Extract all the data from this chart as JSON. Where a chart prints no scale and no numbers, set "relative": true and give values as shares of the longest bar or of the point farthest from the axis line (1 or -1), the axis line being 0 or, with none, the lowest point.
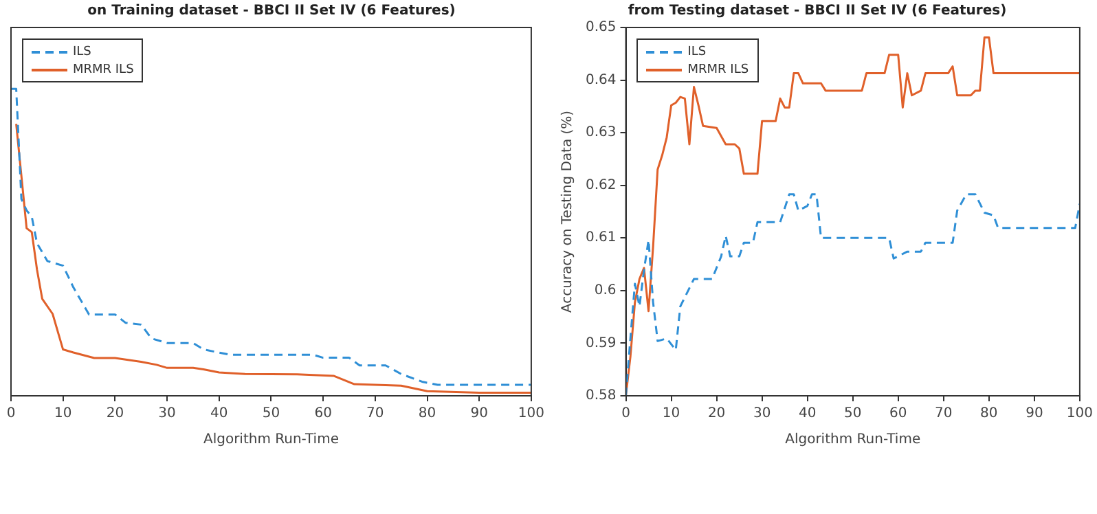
{
  "chart_data": [
    {
      "type": "line",
      "title": "on Training dataset - BBCI II Set IV (6 Features)",
      "xlabel": "Algorithm Run-Time",
      "xlim": [
        0,
        100
      ],
      "xticks": [
        0,
        10,
        20,
        30,
        40,
        50,
        60,
        70,
        80,
        90,
        100
      ],
      "relative": true,
      "grid": false,
      "legend": "top left",
      "marker": "none",
      "series": [
        {
          "name": "ILS",
          "color": "#2f8fd6",
          "line_style": "dashed",
          "x": [
            0,
            1,
            2,
            3,
            4,
            5,
            7,
            10,
            12,
            15,
            20,
            22,
            25,
            27,
            30,
            35,
            37,
            42,
            58,
            60,
            65,
            67,
            72,
            75,
            79,
            82,
            100
          ],
          "values": [
            1,
            1,
            0.641,
            0.604,
            0.583,
            0.497,
            0.439,
            0.424,
            0.353,
            0.265,
            0.265,
            0.238,
            0.232,
            0.187,
            0.172,
            0.172,
            0.151,
            0.134,
            0.134,
            0.124,
            0.124,
            0.099,
            0.099,
            0.071,
            0.046,
            0.036,
            0.036
          ]
        },
        {
          "name": "MRMR ILS",
          "color": "#e0602a",
          "line_style": "solid",
          "x": [
            1,
            3,
            4,
            5,
            6,
            8,
            10,
            12,
            16,
            20,
            25,
            28,
            30,
            35,
            37,
            40,
            45,
            55,
            62,
            66,
            75,
            80,
            90,
            100
          ],
          "values": [
            0.886,
            0.546,
            0.533,
            0.411,
            0.316,
            0.267,
            0.151,
            0.141,
            0.123,
            0.123,
            0.111,
            0.101,
            0.091,
            0.091,
            0.086,
            0.076,
            0.071,
            0.07,
            0.065,
            0.038,
            0.033,
            0.015,
            0.01,
            0.01
          ]
        }
      ]
    },
    {
      "type": "line",
      "title": "from Testing dataset - BBCI II Set IV (6 Features)",
      "xlabel": "Algorithm Run-Time",
      "ylabel": "Accuracy on Testing Data (%)",
      "xlim": [
        0,
        100
      ],
      "xticks": [
        0,
        10,
        20,
        30,
        40,
        50,
        60,
        70,
        80,
        90,
        100
      ],
      "ylim": [
        0.58,
        0.65
      ],
      "yticks": [
        0.58,
        0.59,
        0.6,
        0.61,
        0.62,
        0.63,
        0.64,
        0.65
      ],
      "grid": false,
      "legend": "top left",
      "marker": "none",
      "series": [
        {
          "name": "ILS",
          "color": "#2f8fd6",
          "line_style": "dashed",
          "x": [
            0,
            1,
            2,
            3,
            4,
            5,
            6,
            7,
            9,
            11,
            12,
            15,
            19,
            21,
            22,
            23,
            25,
            26,
            28,
            29,
            34,
            36,
            37,
            38,
            40,
            41,
            42,
            43,
            58,
            59,
            62,
            65,
            66,
            72,
            73,
            75,
            77,
            79,
            81,
            82,
            99,
            100
          ],
          "values": [
            0.58,
            0.5909,
            0.6013,
            0.597,
            0.6039,
            0.6096,
            0.5978,
            0.5904,
            0.5909,
            0.5887,
            0.597,
            0.6022,
            0.6022,
            0.6065,
            0.6104,
            0.6065,
            0.6065,
            0.6091,
            0.6091,
            0.613,
            0.613,
            0.6183,
            0.6183,
            0.6152,
            0.6161,
            0.6183,
            0.6183,
            0.61,
            0.61,
            0.6061,
            0.6074,
            0.6074,
            0.6091,
            0.6091,
            0.6152,
            0.6183,
            0.6183,
            0.6148,
            0.6143,
            0.6119,
            0.6119,
            0.6165
          ]
        },
        {
          "name": "MRMR ILS",
          "color": "#e0602a",
          "line_style": "solid",
          "x": [
            0,
            1,
            2,
            3,
            4,
            5,
            6,
            7,
            8,
            9,
            10,
            11,
            12,
            13,
            14,
            15,
            16,
            17,
            20,
            22,
            24,
            25,
            26,
            29,
            30,
            33,
            34,
            35,
            36,
            37,
            38,
            39,
            43,
            44,
            52,
            53,
            57,
            58,
            60,
            61,
            62,
            63,
            65,
            66,
            71,
            72,
            73,
            76,
            77,
            78,
            79,
            80,
            81,
            100
          ],
          "values": [
            0.58,
            0.5874,
            0.5978,
            0.6022,
            0.6043,
            0.5961,
            0.6083,
            0.623,
            0.6257,
            0.6291,
            0.6352,
            0.6357,
            0.6368,
            0.6365,
            0.6278,
            0.6387,
            0.6352,
            0.6313,
            0.6309,
            0.6278,
            0.6278,
            0.627,
            0.6222,
            0.6222,
            0.6322,
            0.6322,
            0.6365,
            0.6348,
            0.6348,
            0.6413,
            0.6413,
            0.6394,
            0.6394,
            0.638,
            0.638,
            0.6413,
            0.6413,
            0.6448,
            0.6448,
            0.6348,
            0.6413,
            0.6371,
            0.638,
            0.6413,
            0.6413,
            0.6426,
            0.6371,
            0.6371,
            0.638,
            0.638,
            0.6481,
            0.6481,
            0.6413,
            0.6413
          ]
        }
      ]
    }
  ]
}
